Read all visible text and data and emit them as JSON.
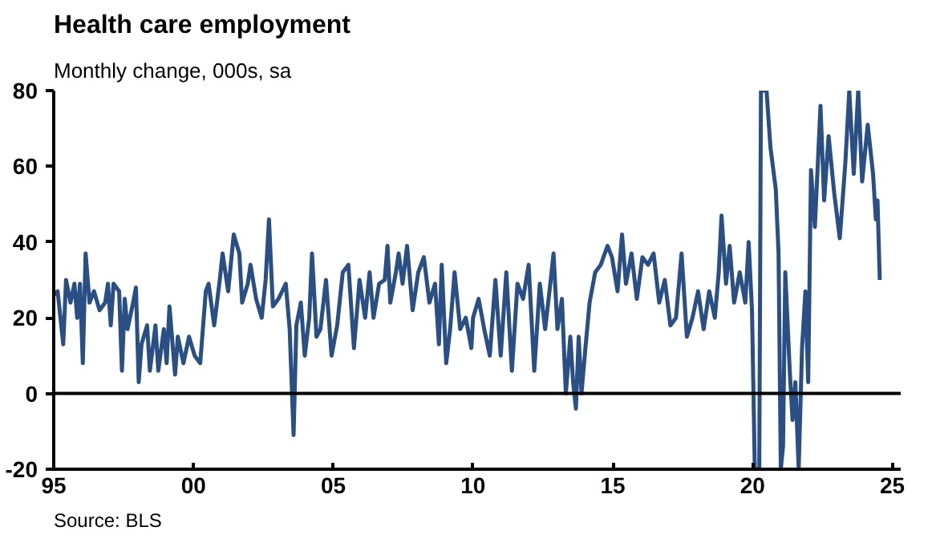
{
  "chart_data": {
    "type": "line",
    "title": "Health care employment",
    "subtitle": "Monthly change, 000s, sa",
    "annotations": [
      "Source: BLS"
    ],
    "x": [
      1995.0,
      1995.14,
      1995.34,
      1995.44,
      1995.6,
      1995.74,
      1995.84,
      1995.94,
      1996.04,
      1996.14,
      1996.28,
      1996.44,
      1996.64,
      1996.84,
      1996.94,
      1997.04,
      1997.14,
      1997.34,
      1997.44,
      1997.54,
      1997.64,
      1997.84,
      1997.94,
      1998.04,
      1998.14,
      1998.34,
      1998.44,
      1998.64,
      1998.74,
      1998.94,
      1999.04,
      1999.14,
      1999.34,
      1999.44,
      1999.64,
      1999.84,
      2000.04,
      2000.24,
      2000.44,
      2000.54,
      2000.74,
      2000.94,
      2001.04,
      2001.24,
      2001.44,
      2001.64,
      2001.74,
      2001.94,
      2002.04,
      2002.24,
      2002.44,
      2002.58,
      2002.7,
      2002.84,
      2003.04,
      2003.3,
      2003.44,
      2003.58,
      2003.68,
      2003.84,
      2003.98,
      2004.14,
      2004.24,
      2004.4,
      2004.54,
      2004.74,
      2004.94,
      2005.14,
      2005.34,
      2005.54,
      2005.74,
      2005.94,
      2006.14,
      2006.3,
      2006.44,
      2006.64,
      2006.84,
      2006.94,
      2007.04,
      2007.24,
      2007.34,
      2007.48,
      2007.64,
      2007.84,
      2008.04,
      2008.24,
      2008.44,
      2008.64,
      2008.78,
      2008.88,
      2009.04,
      2009.18,
      2009.34,
      2009.54,
      2009.74,
      2009.94,
      2010.0,
      2010.2,
      2010.4,
      2010.6,
      2010.8,
      2010.99,
      2011.19,
      2011.39,
      2011.59,
      2011.79,
      2011.99,
      2012.19,
      2012.39,
      2012.58,
      2012.78,
      2012.88,
      2013.02,
      2013.18,
      2013.32,
      2013.48,
      2013.58,
      2013.68,
      2013.78,
      2013.88,
      2014.02,
      2014.17,
      2014.37,
      2014.57,
      2014.81,
      2014.97,
      2015.17,
      2015.33,
      2015.47,
      2015.67,
      2015.86,
      2016.06,
      2016.26,
      2016.46,
      2016.66,
      2016.86,
      2017.06,
      2017.26,
      2017.46,
      2017.65,
      2017.85,
      2018.05,
      2018.25,
      2018.45,
      2018.65,
      2018.79,
      2018.89,
      2019.05,
      2019.18,
      2019.34,
      2019.54,
      2019.74,
      2019.86,
      2019.98,
      2020.08,
      2020.24,
      2020.3,
      2020.5,
      2020.64,
      2020.83,
      2020.93,
      2021.01,
      2021.09,
      2021.17,
      2021.33,
      2021.43,
      2021.53,
      2021.65,
      2021.77,
      2021.89,
      2021.99,
      2022.09,
      2022.23,
      2022.43,
      2022.56,
      2022.72,
      2022.92,
      2023.12,
      2023.32,
      2023.46,
      2023.62,
      2023.78,
      2023.92,
      2024.12,
      2024.31,
      2024.41,
      2024.47,
      2024.55
    ],
    "series": [
      {
        "color": "#2a4f85",
        "values": [
          26,
          27,
          13,
          30,
          24,
          29,
          20,
          29,
          8,
          37,
          24,
          27,
          22,
          24,
          29,
          18,
          29,
          27,
          6,
          25,
          17,
          24,
          28,
          3,
          13,
          18,
          6,
          18,
          6,
          17,
          8,
          23,
          5,
          15,
          8,
          15,
          10,
          8,
          27,
          29,
          18,
          30,
          37,
          27,
          42,
          37,
          24,
          29,
          34,
          25,
          20,
          30,
          46,
          23,
          25,
          29,
          17,
          -11,
          18,
          24,
          10,
          20,
          37,
          15,
          17,
          30,
          10,
          18,
          32,
          34,
          12,
          30,
          20,
          32,
          20,
          29,
          30,
          39,
          24,
          32,
          37,
          29,
          39,
          22,
          32,
          36,
          24,
          29,
          13,
          34,
          8,
          17,
          32,
          17,
          20,
          12,
          20,
          25,
          17,
          10,
          30,
          10,
          32,
          6,
          29,
          25,
          34,
          6,
          29,
          17,
          30,
          37,
          17,
          25,
          0,
          15,
          3,
          -4,
          15,
          0,
          12,
          24,
          32,
          34,
          39,
          36,
          27,
          42,
          29,
          37,
          25,
          36,
          34,
          37,
          24,
          30,
          18,
          20,
          37,
          15,
          20,
          27,
          17,
          27,
          20,
          32,
          47,
          29,
          39,
          24,
          32,
          24,
          40,
          22,
          -20,
          -20,
          80,
          80,
          65,
          54,
          37,
          -20,
          -14,
          32,
          6,
          -7,
          3,
          -20,
          12,
          27,
          3,
          59,
          44,
          76,
          51,
          68,
          53,
          41,
          61,
          80,
          58,
          80,
          56,
          71,
          58,
          46,
          51,
          30
        ]
      }
    ],
    "xlim": [
      1995,
      2025.3
    ],
    "ylim": [
      -20,
      80
    ],
    "xticks": [
      {
        "value": 1995,
        "label": "95"
      },
      {
        "value": 2000,
        "label": "00"
      },
      {
        "value": 2005,
        "label": "05"
      },
      {
        "value": 2010,
        "label": "10"
      },
      {
        "value": 2015,
        "label": "15"
      },
      {
        "value": 2020,
        "label": "20"
      },
      {
        "value": 2025,
        "label": "25"
      }
    ],
    "yticks": [
      -20,
      0,
      20,
      40,
      60,
      80
    ],
    "ref_lines": [
      {
        "axis": "y",
        "value": 0,
        "color": "#000000"
      }
    ],
    "line_style": "solid"
  }
}
